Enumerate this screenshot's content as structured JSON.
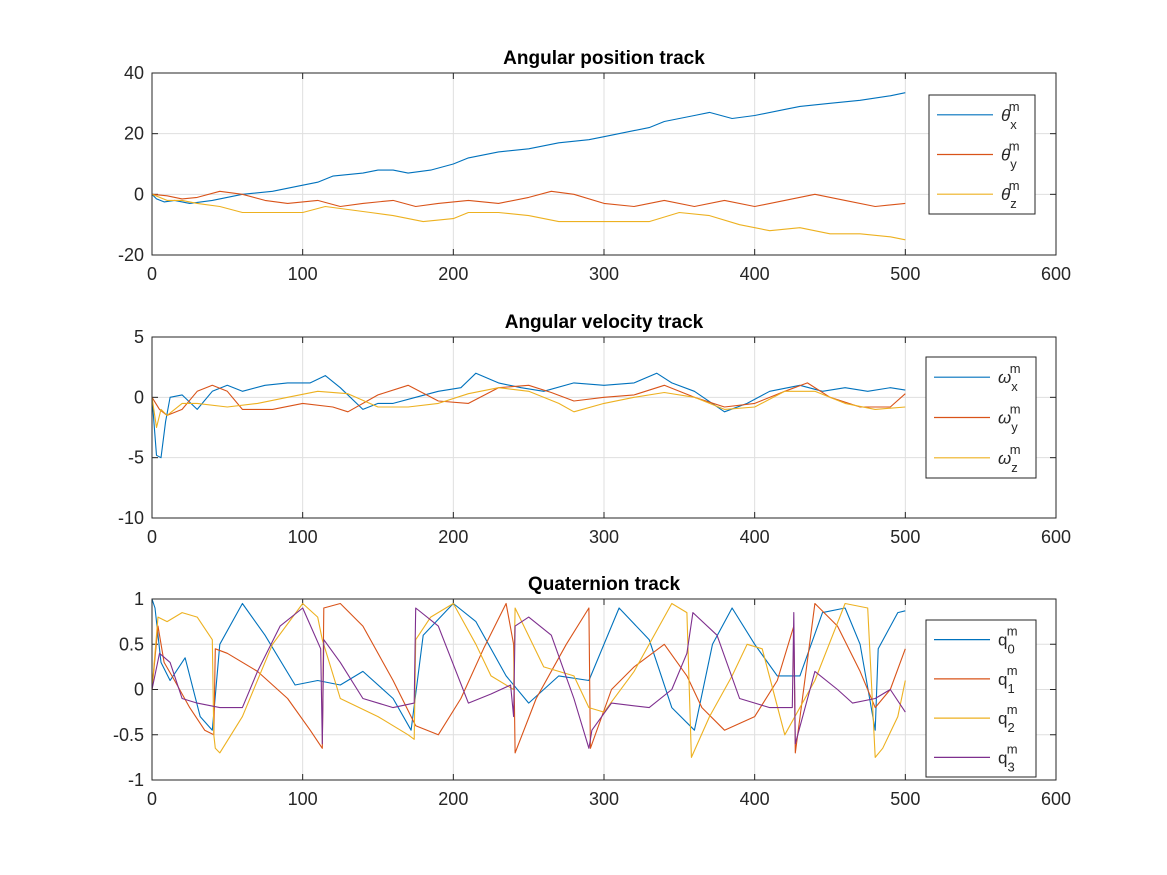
{
  "chart_data": [
    {
      "type": "line",
      "title": "Angular position track",
      "xlim": [
        0,
        600
      ],
      "ylim": [
        -20,
        40
      ],
      "xticks": [
        "0",
        "100",
        "200",
        "300",
        "400",
        "500",
        "600"
      ],
      "yticks": [
        "-20",
        "0",
        "20",
        "40"
      ],
      "grid": true,
      "legend_location": "right",
      "series": [
        {
          "legend": {
            "base": "θ",
            "sub": "x",
            "sup": "m"
          },
          "color": "#0072BD",
          "x": [
            0,
            3,
            8,
            15,
            25,
            40,
            60,
            80,
            100,
            110,
            120,
            140,
            150,
            160,
            170,
            185,
            200,
            210,
            230,
            250,
            270,
            290,
            300,
            320,
            330,
            340,
            360,
            370,
            385,
            400,
            420,
            430,
            450,
            470,
            490,
            500
          ],
          "y": [
            0,
            -1.5,
            -2.5,
            -2,
            -3,
            -2,
            0,
            1,
            3,
            4,
            6,
            7,
            8,
            8,
            7,
            8,
            10,
            12,
            14,
            15,
            17,
            18,
            19,
            21,
            22,
            24,
            26,
            27,
            25,
            26,
            28,
            29,
            30,
            31,
            32.5,
            33.5
          ]
        },
        {
          "legend": {
            "base": "θ",
            "sub": "y",
            "sup": "m"
          },
          "color": "#D95319",
          "x": [
            0,
            10,
            20,
            30,
            45,
            60,
            75,
            90,
            110,
            125,
            140,
            160,
            175,
            190,
            210,
            230,
            250,
            265,
            280,
            300,
            320,
            340,
            360,
            380,
            400,
            420,
            440,
            460,
            480,
            500
          ],
          "y": [
            0,
            -0.5,
            -1.5,
            -1,
            1,
            0,
            -2,
            -3,
            -2,
            -4,
            -3,
            -2,
            -4,
            -3,
            -2,
            -3,
            -1,
            1,
            0,
            -3,
            -4,
            -2,
            -4,
            -2,
            -4,
            -2,
            0,
            -2,
            -4,
            -3
          ]
        },
        {
          "legend": {
            "base": "θ",
            "sub": "z",
            "sup": "m"
          },
          "color": "#EDB120",
          "x": [
            0,
            10,
            20,
            30,
            45,
            60,
            80,
            100,
            115,
            130,
            145,
            160,
            180,
            200,
            210,
            230,
            250,
            270,
            300,
            330,
            350,
            370,
            390,
            410,
            430,
            450,
            470,
            490,
            500
          ],
          "y": [
            0,
            -2,
            -2,
            -3,
            -4,
            -6,
            -6,
            -6,
            -4,
            -5,
            -6,
            -7,
            -9,
            -8,
            -6,
            -6,
            -7,
            -9,
            -9,
            -9,
            -6,
            -7,
            -10,
            -12,
            -11,
            -13,
            -13,
            -14,
            -15
          ]
        }
      ]
    },
    {
      "type": "line",
      "title": "Angular velocity track",
      "xlim": [
        0,
        600
      ],
      "ylim": [
        -10,
        5
      ],
      "xticks": [
        "0",
        "100",
        "200",
        "300",
        "400",
        "500",
        "600"
      ],
      "yticks": [
        "-10",
        "-5",
        "0",
        "5"
      ],
      "grid": true,
      "legend_location": "right",
      "series": [
        {
          "legend": {
            "base": "ω",
            "sub": "x",
            "sup": "m"
          },
          "color": "#0072BD",
          "x": [
            0,
            3,
            6,
            9,
            12,
            20,
            30,
            40,
            50,
            60,
            75,
            90,
            105,
            115,
            125,
            140,
            150,
            160,
            175,
            190,
            205,
            215,
            230,
            245,
            260,
            280,
            300,
            320,
            335,
            345,
            360,
            380,
            395,
            410,
            430,
            445,
            460,
            475,
            490,
            500
          ],
          "y": [
            0,
            -4.8,
            -5,
            -2,
            0,
            0.2,
            -1,
            0.5,
            1,
            0.5,
            1,
            1.2,
            1.2,
            1.8,
            0.8,
            -1,
            -0.5,
            -0.5,
            0,
            0.5,
            0.8,
            2,
            1.2,
            0.8,
            0.5,
            1.2,
            1,
            1.2,
            2,
            1.2,
            0.5,
            -1.2,
            -0.5,
            0.5,
            1,
            0.5,
            0.8,
            0.5,
            0.8,
            0.6
          ]
        },
        {
          "legend": {
            "base": "ω",
            "sub": "y",
            "sup": "m"
          },
          "color": "#D95319",
          "x": [
            0,
            5,
            10,
            20,
            30,
            40,
            50,
            60,
            80,
            100,
            120,
            130,
            150,
            170,
            190,
            210,
            230,
            250,
            265,
            280,
            300,
            320,
            340,
            360,
            380,
            400,
            420,
            435,
            450,
            470,
            490,
            500
          ],
          "y": [
            0,
            -1,
            -1.5,
            -1,
            0.5,
            1,
            0.5,
            -1,
            -1,
            -0.5,
            -0.8,
            -1.2,
            0.2,
            1,
            -0.3,
            -0.5,
            0.8,
            1,
            0.4,
            -0.3,
            0,
            0.2,
            1,
            0,
            -0.8,
            -0.5,
            0.5,
            1.2,
            0,
            -0.8,
            -0.8,
            0.3
          ]
        },
        {
          "legend": {
            "base": "ω",
            "sub": "z",
            "sup": "m"
          },
          "color": "#EDB120",
          "x": [
            0,
            3,
            6,
            10,
            20,
            30,
            50,
            70,
            90,
            110,
            130,
            150,
            170,
            190,
            210,
            230,
            250,
            270,
            280,
            300,
            320,
            340,
            360,
            380,
            400,
            420,
            440,
            460,
            480,
            500
          ],
          "y": [
            0,
            -2.5,
            -1,
            -1.5,
            -0.5,
            -0.5,
            -0.8,
            -0.5,
            0,
            0.5,
            0.3,
            -0.8,
            -0.8,
            -0.5,
            0.3,
            0.8,
            0.5,
            -0.5,
            -1.2,
            -0.5,
            0,
            0.4,
            0,
            -1,
            -0.8,
            0.5,
            0.5,
            -0.5,
            -1,
            -0.8
          ]
        }
      ]
    },
    {
      "type": "line",
      "title": "Quaternion track",
      "xlim": [
        0,
        600
      ],
      "ylim": [
        -1,
        1
      ],
      "xticks": [
        "0",
        "100",
        "200",
        "300",
        "400",
        "500",
        "600"
      ],
      "yticks": [
        "-1",
        "-0.5",
        "0",
        "0.5",
        "1"
      ],
      "grid": true,
      "legend_location": "right",
      "series": [
        {
          "legend": {
            "base": "q",
            "sub": "0",
            "sup": "m"
          },
          "color": "#0072BD",
          "x": [
            0,
            2,
            6,
            12,
            22,
            32,
            40,
            45,
            60,
            75,
            95,
            110,
            125,
            140,
            160,
            172,
            180,
            200,
            215,
            235,
            250,
            270,
            290,
            310,
            330,
            345,
            360,
            372,
            385,
            400,
            415,
            430,
            445,
            460,
            470,
            480,
            482,
            495,
            500
          ],
          "y": [
            1,
            0.9,
            0.3,
            0.1,
            0.35,
            -0.3,
            -0.45,
            0.5,
            0.95,
            0.6,
            0.05,
            0.1,
            0.05,
            0.2,
            -0.1,
            -0.45,
            0.6,
            0.95,
            0.75,
            0.15,
            -0.15,
            0.15,
            0.1,
            0.9,
            0.55,
            -0.2,
            -0.45,
            0.5,
            0.9,
            0.5,
            0.15,
            0.15,
            0.85,
            0.9,
            0.5,
            -0.45,
            0.45,
            0.85,
            0.87
          ]
        },
        {
          "legend": {
            "base": "q",
            "sub": "1",
            "sup": "m"
          },
          "color": "#D95319",
          "x": [
            0,
            4,
            8,
            15,
            25,
            35,
            41,
            42,
            50,
            70,
            90,
            105,
            113,
            114,
            125,
            140,
            160,
            175,
            190,
            205,
            220,
            235,
            240,
            241,
            255,
            275,
            290,
            291,
            305,
            320,
            340,
            355,
            365,
            380,
            400,
            415,
            426,
            427,
            440,
            455,
            470,
            480,
            490,
            500
          ],
          "y": [
            0,
            0.7,
            0.3,
            0.1,
            -0.2,
            -0.45,
            -0.5,
            0.45,
            0.4,
            0.2,
            -0.1,
            -0.45,
            -0.65,
            0.9,
            0.95,
            0.7,
            0.1,
            -0.4,
            -0.5,
            -0.1,
            0.45,
            0.95,
            0.5,
            -0.7,
            -0.1,
            0.5,
            0.9,
            -0.65,
            0.0,
            0.25,
            0.5,
            0.15,
            -0.2,
            -0.45,
            -0.3,
            0.1,
            0.7,
            -0.7,
            0.95,
            0.7,
            0.2,
            -0.2,
            0.0,
            0.45
          ]
        },
        {
          "legend": {
            "base": "q",
            "sub": "2",
            "sup": "m"
          },
          "color": "#EDB120",
          "x": [
            0,
            4,
            10,
            20,
            30,
            40,
            41,
            42,
            45,
            60,
            80,
            100,
            110,
            113,
            125,
            150,
            170,
            174,
            175,
            185,
            200,
            215,
            225,
            240,
            241,
            260,
            280,
            290,
            300,
            320,
            345,
            355,
            358,
            370,
            385,
            395,
            405,
            420,
            440,
            460,
            475,
            480,
            485,
            495,
            500
          ],
          "y": [
            0,
            0.8,
            0.75,
            0.85,
            0.8,
            0.55,
            -0.5,
            -0.65,
            -0.7,
            -0.3,
            0.5,
            0.95,
            0.8,
            0.55,
            -0.1,
            -0.3,
            -0.5,
            -0.55,
            0.55,
            0.8,
            0.95,
            0.5,
            0.15,
            0.0,
            0.9,
            0.25,
            0.15,
            -0.2,
            -0.25,
            0.2,
            0.95,
            0.85,
            -0.75,
            -0.3,
            0.15,
            0.5,
            0.45,
            -0.5,
            0.1,
            0.95,
            0.9,
            -0.75,
            -0.65,
            -0.3,
            0.1
          ]
        },
        {
          "legend": {
            "base": "q",
            "sub": "3",
            "sup": "m"
          },
          "color": "#7E2F8E",
          "x": [
            0,
            5,
            12,
            20,
            30,
            45,
            60,
            70,
            85,
            100,
            112,
            113,
            114,
            125,
            140,
            160,
            174,
            175,
            190,
            210,
            225,
            238,
            240,
            241,
            250,
            265,
            280,
            290,
            292,
            305,
            330,
            345,
            355,
            359,
            375,
            390,
            410,
            425,
            426,
            427,
            440,
            455,
            465,
            480,
            490,
            500
          ],
          "y": [
            0,
            0.4,
            0.3,
            -0.1,
            -0.15,
            -0.2,
            -0.2,
            0.2,
            0.7,
            0.9,
            0.45,
            -0.6,
            0.55,
            0.3,
            -0.1,
            -0.2,
            -0.15,
            0.9,
            0.7,
            -0.15,
            -0.05,
            0.05,
            -0.3,
            0.7,
            0.8,
            0.6,
            -0.1,
            -0.65,
            -0.45,
            -0.15,
            -0.2,
            0.0,
            0.4,
            0.85,
            0.6,
            -0.1,
            -0.2,
            -0.2,
            0.85,
            -0.6,
            0.2,
            0.0,
            -0.15,
            -0.1,
            0.0,
            -0.25
          ]
        }
      ]
    }
  ]
}
